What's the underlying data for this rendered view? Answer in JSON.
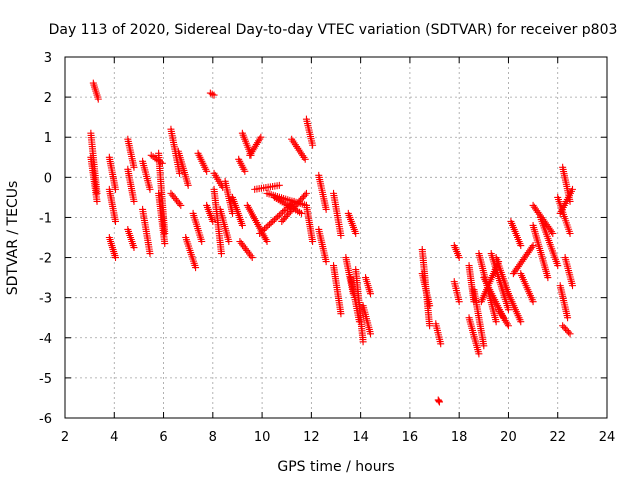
{
  "chart_data": {
    "type": "scatter",
    "title": "Day 113 of 2020, Sidereal Day-to-day VTEC variation (SDTVAR) for receiver p803",
    "xlabel": "GPS time / hours",
    "ylabel": "SDTVAR / TECUs",
    "xlim": [
      2,
      24
    ],
    "ylim": [
      -6,
      3
    ],
    "xticks": [
      2,
      4,
      6,
      8,
      10,
      12,
      14,
      16,
      18,
      20,
      22,
      24
    ],
    "yticks": [
      -6,
      -5,
      -4,
      -3,
      -2,
      -1,
      0,
      1,
      2,
      3
    ],
    "grid": true,
    "marker": "+",
    "marker_color": "#ff0000",
    "tracks": [
      {
        "x": [
          3.05,
          3.3
        ],
        "y": [
          1.1,
          -0.4
        ]
      },
      {
        "x": [
          3.05,
          3.3
        ],
        "y": [
          0.5,
          -0.6
        ]
      },
      {
        "x": [
          3.15,
          3.35
        ],
        "y": [
          2.35,
          1.95
        ]
      },
      {
        "x": [
          3.8,
          4.05
        ],
        "y": [
          0.5,
          -0.3
        ]
      },
      {
        "x": [
          3.8,
          4.05
        ],
        "y": [
          -0.3,
          -1.1
        ]
      },
      {
        "x": [
          3.8,
          4.05
        ],
        "y": [
          -1.5,
          -2.0
        ]
      },
      {
        "x": [
          4.55,
          4.8
        ],
        "y": [
          0.95,
          0.25
        ]
      },
      {
        "x": [
          4.55,
          4.8
        ],
        "y": [
          0.2,
          -0.6
        ]
      },
      {
        "x": [
          4.55,
          4.8
        ],
        "y": [
          -1.3,
          -1.75
        ]
      },
      {
        "x": [
          5.15,
          5.45
        ],
        "y": [
          0.4,
          -0.3
        ]
      },
      {
        "x": [
          5.15,
          5.45
        ],
        "y": [
          -0.8,
          -1.9
        ]
      },
      {
        "x": [
          5.5,
          5.95
        ],
        "y": [
          0.55,
          0.35
        ]
      },
      {
        "x": [
          5.8,
          6.05
        ],
        "y": [
          0.6,
          -1.4
        ]
      },
      {
        "x": [
          5.8,
          6.05
        ],
        "y": [
          -0.4,
          -1.65
        ]
      },
      {
        "x": [
          6.3,
          6.65
        ],
        "y": [
          1.2,
          0.1
        ]
      },
      {
        "x": [
          6.3,
          6.7
        ],
        "y": [
          -0.4,
          -0.7
        ]
      },
      {
        "x": [
          6.6,
          7.0
        ],
        "y": [
          0.65,
          -0.2
        ]
      },
      {
        "x": [
          6.9,
          7.3
        ],
        "y": [
          -1.5,
          -2.25
        ]
      },
      {
        "x": [
          7.2,
          7.55
        ],
        "y": [
          -0.9,
          -1.6
        ]
      },
      {
        "x": [
          7.4,
          7.75
        ],
        "y": [
          0.6,
          0.15
        ]
      },
      {
        "x": [
          7.75,
          8.0
        ],
        "y": [
          -0.7,
          -1.1
        ]
      },
      {
        "x": [
          7.9,
          8.05
        ],
        "y": [
          2.1,
          2.05
        ]
      },
      {
        "x": [
          8.05,
          8.4
        ],
        "y": [
          0.1,
          -0.25
        ]
      },
      {
        "x": [
          8.05,
          8.35
        ],
        "y": [
          -0.3,
          -1.9
        ]
      },
      {
        "x": [
          8.3,
          8.65
        ],
        "y": [
          -0.8,
          -1.6
        ]
      },
      {
        "x": [
          8.5,
          8.8
        ],
        "y": [
          -0.1,
          -0.9
        ]
      },
      {
        "x": [
          8.8,
          9.2
        ],
        "y": [
          -0.5,
          -1.2
        ]
      },
      {
        "x": [
          9.05,
          9.3
        ],
        "y": [
          0.45,
          0.15
        ]
      },
      {
        "x": [
          9.2,
          9.55
        ],
        "y": [
          1.1,
          0.55
        ]
      },
      {
        "x": [
          9.5,
          9.95
        ],
        "y": [
          0.55,
          1.0
        ]
      },
      {
        "x": [
          9.1,
          9.6
        ],
        "y": [
          -1.6,
          -2.0
        ]
      },
      {
        "x": [
          9.4,
          10.2
        ],
        "y": [
          -0.7,
          -1.6
        ]
      },
      {
        "x": [
          9.7,
          10.7
        ],
        "y": [
          -0.3,
          -0.2
        ]
      },
      {
        "x": [
          9.9,
          11.3
        ],
        "y": [
          -1.4,
          -0.6
        ]
      },
      {
        "x": [
          10.2,
          11.8
        ],
        "y": [
          -0.4,
          -0.7
        ]
      },
      {
        "x": [
          10.5,
          11.6
        ],
        "y": [
          -0.5,
          -0.9
        ]
      },
      {
        "x": [
          10.8,
          11.8
        ],
        "y": [
          -1.1,
          -0.4
        ]
      },
      {
        "x": [
          11.2,
          11.75
        ],
        "y": [
          0.95,
          0.45
        ]
      },
      {
        "x": [
          11.8,
          12.05
        ],
        "y": [
          1.45,
          0.8
        ]
      },
      {
        "x": [
          11.8,
          12.05
        ],
        "y": [
          -0.7,
          -1.6
        ]
      },
      {
        "x": [
          12.3,
          12.6
        ],
        "y": [
          0.05,
          -0.8
        ]
      },
      {
        "x": [
          12.3,
          12.6
        ],
        "y": [
          -1.3,
          -2.1
        ]
      },
      {
        "x": [
          12.9,
          13.2
        ],
        "y": [
          -0.4,
          -1.45
        ]
      },
      {
        "x": [
          12.9,
          13.2
        ],
        "y": [
          -2.2,
          -3.4
        ]
      },
      {
        "x": [
          13.4,
          13.7
        ],
        "y": [
          -2.0,
          -2.9
        ]
      },
      {
        "x": [
          13.5,
          13.8
        ],
        "y": [
          -0.9,
          -1.4
        ]
      },
      {
        "x": [
          13.6,
          13.95
        ],
        "y": [
          -2.5,
          -3.6
        ]
      },
      {
        "x": [
          13.8,
          14.1
        ],
        "y": [
          -2.3,
          -4.1
        ]
      },
      {
        "x": [
          14.1,
          14.4
        ],
        "y": [
          -3.2,
          -3.9
        ]
      },
      {
        "x": [
          14.2,
          14.4
        ],
        "y": [
          -2.5,
          -2.9
        ]
      },
      {
        "x": [
          16.5,
          16.8
        ],
        "y": [
          -1.8,
          -3.7
        ]
      },
      {
        "x": [
          16.5,
          16.8
        ],
        "y": [
          -2.4,
          -3.2
        ]
      },
      {
        "x": [
          17.05,
          17.25
        ],
        "y": [
          -3.65,
          -4.15
        ]
      },
      {
        "x": [
          17.15,
          17.2
        ],
        "y": [
          -5.55,
          -5.6
        ]
      },
      {
        "x": [
          17.8,
          18.0
        ],
        "y": [
          -1.7,
          -2.0
        ]
      },
      {
        "x": [
          17.8,
          18.0
        ],
        "y": [
          -2.6,
          -3.1
        ]
      },
      {
        "x": [
          18.4,
          18.6
        ],
        "y": [
          -2.2,
          -3.1
        ]
      },
      {
        "x": [
          18.4,
          18.8
        ],
        "y": [
          -3.5,
          -4.4
        ]
      },
      {
        "x": [
          18.6,
          19.0
        ],
        "y": [
          -2.8,
          -4.2
        ]
      },
      {
        "x": [
          18.8,
          19.5
        ],
        "y": [
          -1.9,
          -3.6
        ]
      },
      {
        "x": [
          18.9,
          19.6
        ],
        "y": [
          -3.1,
          -2.1
        ]
      },
      {
        "x": [
          19.0,
          19.8
        ],
        "y": [
          -2.5,
          -3.5
        ]
      },
      {
        "x": [
          19.3,
          20.0
        ],
        "y": [
          -1.9,
          -3.3
        ]
      },
      {
        "x": [
          19.5,
          20.0
        ],
        "y": [
          -2.0,
          -2.9
        ]
      },
      {
        "x": [
          19.6,
          20.0
        ],
        "y": [
          -3.3,
          -3.7
        ]
      },
      {
        "x": [
          20.0,
          20.5
        ],
        "y": [
          -2.9,
          -3.6
        ]
      },
      {
        "x": [
          20.1,
          20.5
        ],
        "y": [
          -1.1,
          -1.7
        ]
      },
      {
        "x": [
          20.2,
          21.0
        ],
        "y": [
          -2.4,
          -1.7
        ]
      },
      {
        "x": [
          20.5,
          21.0
        ],
        "y": [
          -2.4,
          -3.1
        ]
      },
      {
        "x": [
          21.0,
          21.6
        ],
        "y": [
          -1.2,
          -2.5
        ]
      },
      {
        "x": [
          21.0,
          21.8
        ],
        "y": [
          -0.7,
          -1.4
        ]
      },
      {
        "x": [
          21.3,
          22.0
        ],
        "y": [
          -1.0,
          -2.2
        ]
      },
      {
        "x": [
          22.0,
          22.5
        ],
        "y": [
          -0.5,
          -1.4
        ]
      },
      {
        "x": [
          22.1,
          22.6
        ],
        "y": [
          -0.9,
          -0.3
        ]
      },
      {
        "x": [
          22.2,
          22.5
        ],
        "y": [
          0.25,
          -0.6
        ]
      },
      {
        "x": [
          22.1,
          22.4
        ],
        "y": [
          -2.7,
          -3.5
        ]
      },
      {
        "x": [
          22.2,
          22.5
        ],
        "y": [
          -3.7,
          -3.9
        ]
      },
      {
        "x": [
          22.3,
          22.6
        ],
        "y": [
          -2.0,
          -2.7
        ]
      }
    ]
  }
}
